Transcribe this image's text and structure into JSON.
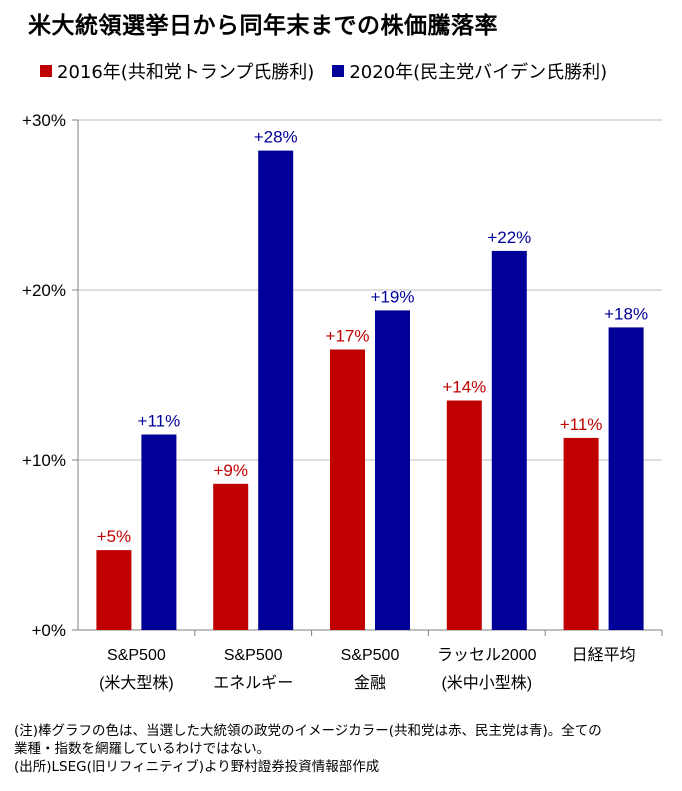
{
  "title": "米大統領選挙日から同年末までの株価騰落率",
  "chart_data": {
    "type": "bar",
    "categories": [
      [
        "S&P500",
        "(米大型株)"
      ],
      [
        "S&P500",
        "エネルギー"
      ],
      [
        "S&P500",
        "金融"
      ],
      [
        "ラッセル2000",
        "(米中小型株)"
      ],
      [
        "日経平均"
      ]
    ],
    "series": [
      {
        "name": "2016年(共和党トランプ氏勝利)",
        "color": "#c00000",
        "values": [
          4.7,
          8.6,
          16.5,
          13.5,
          11.3
        ],
        "labels": [
          "+5%",
          "+9%",
          "+17%",
          "+14%",
          "+11%"
        ]
      },
      {
        "name": "2020年(民主党バイデン氏勝利)",
        "color": "#000099",
        "values": [
          11.5,
          28.2,
          18.8,
          22.3,
          17.8
        ],
        "labels": [
          "+11%",
          "+28%",
          "+19%",
          "+22%",
          "+18%"
        ]
      }
    ],
    "ylim": [
      0,
      30
    ],
    "yticks": [
      0,
      10,
      20,
      30
    ],
    "ytick_labels": [
      "+0%",
      "+10%",
      "+20%",
      "+30%"
    ],
    "grid": true,
    "legend_position": "top"
  },
  "notes": [
    "(注)棒グラフの色は、当選した大統領の政党のイメージカラー(共和党は赤、民主党は青)。全ての",
    "業種・指数を網羅しているわけではない。",
    "(出所)LSEG(旧リフィニティブ)より野村證券投資情報部作成"
  ]
}
